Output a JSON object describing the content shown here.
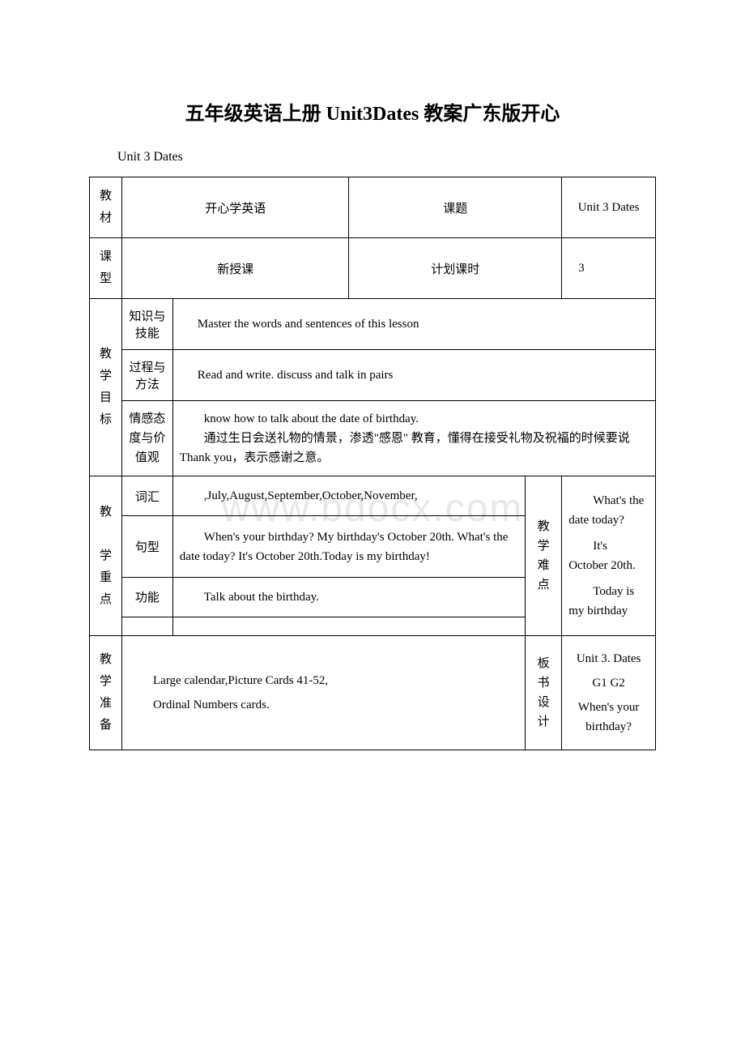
{
  "title": "五年级英语上册 Unit3Dates 教案广东版开心",
  "subtitle": "Unit 3 Dates",
  "watermark": "www.bdocx.com",
  "table": {
    "row1": {
      "label": "教材",
      "value": "开心学英语",
      "col3_label": "课题",
      "col3_value": "Unit 3 Dates"
    },
    "row2": {
      "label": "课型",
      "value": "新授课",
      "col3_label": "计划课时",
      "col3_value": "3"
    },
    "objectives": {
      "label": "教学目标",
      "knowledge": {
        "label": "知识与技能",
        "value": "Master the words and sentences of this lesson"
      },
      "process": {
        "label": "过程与方法",
        "value": "Read and write. discuss and talk in pairs"
      },
      "emotion": {
        "label": "情感态度与价值观",
        "value": "know how to talk about the date of birthday.\n通过生日会送礼物的情景，渗透\"感恩\" 教育，懂得在接受礼物及祝福的时候要说 Thank you，表示感谢之意。"
      }
    },
    "keypoints": {
      "label": "教学重点",
      "vocab": {
        "label": "词汇",
        "value": ",July,August,September,October,November,"
      },
      "sentence": {
        "label": "句型",
        "value": "When's your birthday? My birthday's October 20th. What's the date today? It's October 20th.Today is my birthday!"
      },
      "function": {
        "label": "功能",
        "value": "Talk about the birthday."
      },
      "difficulty_label": "教学难点",
      "difficulty_value": "What's the date today?\nIt's October 20th.\nToday is my birthday"
    },
    "prep": {
      "label": "教学准备",
      "value": "Large calendar,Picture Cards 41-52,\nOrdinal Numbers cards.",
      "board_label": "板书设计",
      "board_value": "Unit 3. Dates\nG1 G2\nWhen's your birthday?"
    }
  }
}
